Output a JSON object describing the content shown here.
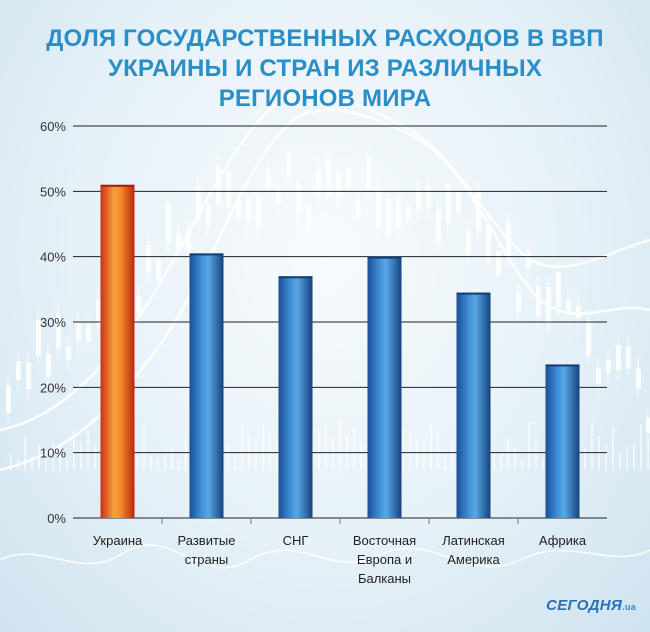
{
  "title_lines": [
    "ДОЛЯ ГОСУДАРСТВЕННЫХ РАСХОДОВ В ВВП",
    "УКРАИНЫ И СТРАН ИЗ РАЗЛИЧНЫХ",
    "РЕГИОНОВ МИРА"
  ],
  "brand": {
    "name": "СЕГОДНЯ",
    "suffix": ".ua"
  },
  "colors": {
    "title": "#2a8fc9",
    "highlight_bar": "#e24a1c",
    "bar": "#1e5ea8",
    "grid": "#222222"
  },
  "chart_data": {
    "type": "bar",
    "title": "ДОЛЯ ГОСУДАРСТВЕННЫХ РАСХОДОВ В ВВП УКРАИНЫ И СТРАН ИЗ РАЗЛИЧНЫХ РЕГИОНОВ МИРА",
    "categories": [
      [
        "Украина"
      ],
      [
        "Развитые",
        "страны"
      ],
      [
        "СНГ"
      ],
      [
        "Восточная",
        "Европа и",
        "Балканы"
      ],
      [
        "Латинская",
        "Америка"
      ],
      [
        "Африка"
      ]
    ],
    "values": [
      51,
      40.5,
      37,
      40,
      34.5,
      23.5
    ],
    "highlight_index": 0,
    "y_ticks": [
      "0%",
      "10%",
      "20%",
      "30%",
      "40%",
      "50%",
      "60%"
    ],
    "ylim": [
      0,
      60
    ],
    "xlabel": "",
    "ylabel": "",
    "grid": true,
    "legend": "none"
  }
}
